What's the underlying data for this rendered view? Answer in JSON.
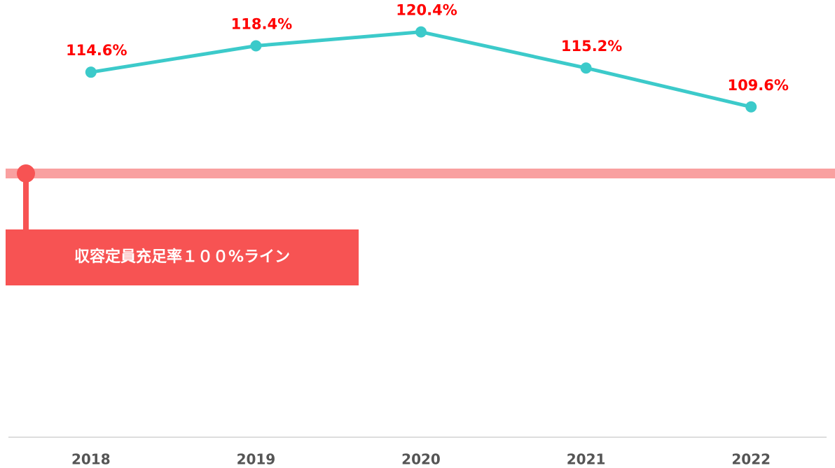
{
  "chart_data": {
    "type": "line",
    "categories": [
      "2018",
      "2019",
      "2020",
      "2021",
      "2022"
    ],
    "series": [
      {
        "color": "#3ccaca",
        "values": [
          114.6,
          118.4,
          120.4,
          115.2,
          109.6
        ],
        "value_labels": [
          "114.6%",
          "118.4%",
          "120.4%",
          "115.2%",
          "109.6%"
        ]
      }
    ],
    "ylim": [
      62,
      125
    ],
    "reference_line": {
      "value": 100,
      "label": "収容定員充足率１００%ライン",
      "color": "#f9a0a0",
      "label_color": "#f75353"
    }
  }
}
